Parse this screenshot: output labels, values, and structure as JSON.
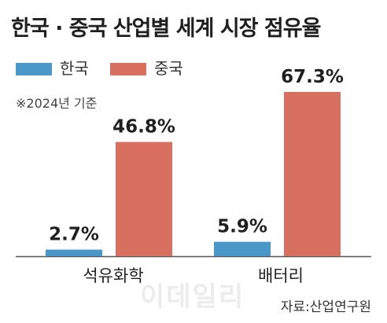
{
  "title": "한국 · 중국 산업별 세계 시장 점유율",
  "note": "※2024년 기준",
  "source": "자료:산업연구원",
  "watermark": "이데일리",
  "chart_data": {
    "type": "bar",
    "title": "한국 · 중국 산업별 세계 시장 점유율",
    "xlabel": "",
    "ylabel": "",
    "categories": [
      "석유화학",
      "배터리"
    ],
    "series": [
      {
        "name": "한국",
        "values": [
          2.7,
          5.9
        ],
        "labels": [
          "2.7%",
          "5.9%"
        ],
        "color": "#4a97c9"
      },
      {
        "name": "중국",
        "values": [
          46.8,
          67.3
        ],
        "labels": [
          "46.8%",
          "67.3%"
        ],
        "color": "#d9705f"
      }
    ],
    "ylim": [
      0,
      70
    ],
    "unit": "%",
    "grid": false,
    "legend": "top-left"
  }
}
